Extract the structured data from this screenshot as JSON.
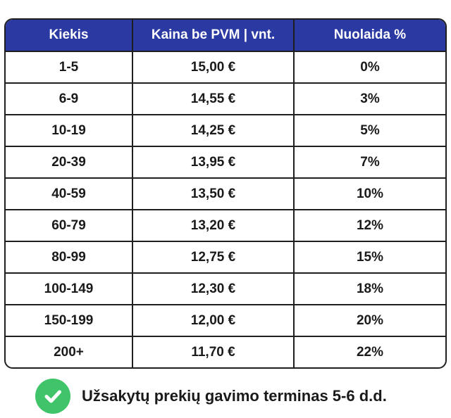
{
  "table": {
    "headers": [
      "Kiekis",
      "Kaina be PVM | vnt.",
      "Nuolaida %"
    ],
    "rows": [
      [
        "1-5",
        "15,00 €",
        "0%"
      ],
      [
        "6-9",
        "14,55 €",
        "3%"
      ],
      [
        "10-19",
        "14,25 €",
        "5%"
      ],
      [
        "20-39",
        "13,95 €",
        "7%"
      ],
      [
        "40-59",
        "13,50 €",
        "10%"
      ],
      [
        "60-79",
        "13,20 €",
        "12%"
      ],
      [
        "80-99",
        "12,75 €",
        "15%"
      ],
      [
        "100-149",
        "12,30 €",
        "18%"
      ],
      [
        "150-199",
        "12,00 €",
        "20%"
      ],
      [
        "200+",
        "11,70 €",
        "22%"
      ]
    ]
  },
  "note": {
    "icon": "check-circle-icon",
    "text": "Užsakytų prekių gavimo terminas 5-6 d.d."
  },
  "colors": {
    "header_bg": "#2b3aa3",
    "check_green": "#3fc46a"
  }
}
